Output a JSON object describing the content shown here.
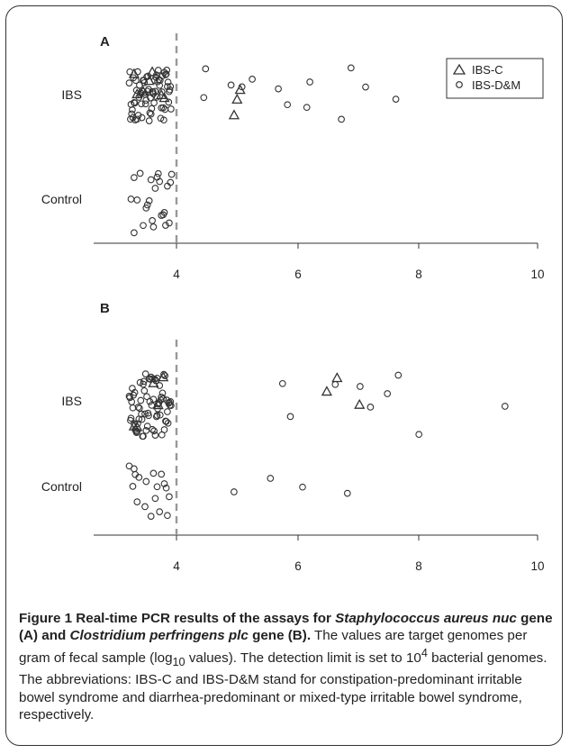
{
  "chart_data": [
    {
      "type": "scatter",
      "panel_label": "A",
      "categories": [
        "IBS",
        "Control"
      ],
      "x_ticks": [
        4,
        6,
        8,
        10
      ],
      "xlim": [
        3,
        10
      ],
      "threshold_x": 4,
      "threshold_style": "dashed",
      "legend": {
        "position": "top-right"
      },
      "series": [
        {
          "name": "IBS-C",
          "marker": "triangle",
          "category": "IBS",
          "x": [
            3.35,
            3.8,
            3.3,
            3.55,
            3.45,
            3.75,
            3.6,
            4.95,
            5.0,
            5.05
          ]
        },
        {
          "name": "IBS-D&M",
          "marker": "circle",
          "category": "IBS",
          "x": [
            3.22,
            3.27,
            3.31,
            3.36,
            3.4,
            3.45,
            3.49,
            3.53,
            3.57,
            3.62,
            3.66,
            3.7,
            3.74,
            3.79,
            3.83,
            3.88,
            3.24,
            3.29,
            3.34,
            3.38,
            3.42,
            3.47,
            3.51,
            3.55,
            3.6,
            3.64,
            3.68,
            3.72,
            3.77,
            3.81,
            3.85,
            3.9,
            3.23,
            3.28,
            3.33,
            3.37,
            3.41,
            3.46,
            3.5,
            3.54,
            3.59,
            3.63,
            3.67,
            3.71,
            3.76,
            3.8,
            3.84,
            3.89,
            3.25,
            3.3,
            3.35,
            3.39,
            3.44,
            3.48,
            3.52,
            3.56,
            3.61,
            3.65,
            3.69,
            3.73,
            3.78,
            3.82,
            3.86,
            3.91,
            3.26,
            3.32,
            3.43,
            3.58,
            3.75,
            3.87,
            4.45,
            4.48,
            4.9,
            5.08,
            5.25,
            5.68,
            5.83,
            6.15,
            6.2,
            6.72,
            6.88,
            7.12,
            7.62
          ]
        },
        {
          "name": "Control",
          "marker": "circle",
          "category": "Control",
          "x": [
            3.25,
            3.3,
            3.3,
            3.35,
            3.45,
            3.5,
            3.55,
            3.58,
            3.6,
            3.62,
            3.65,
            3.7,
            3.72,
            3.75,
            3.78,
            3.8,
            3.82,
            3.85,
            3.88,
            3.9,
            3.92,
            3.68,
            3.4,
            3.52
          ]
        }
      ]
    },
    {
      "type": "scatter",
      "panel_label": "B",
      "categories": [
        "IBS",
        "Control"
      ],
      "x_ticks": [
        4,
        6,
        8,
        10
      ],
      "xlim": [
        3,
        10
      ],
      "threshold_x": 4,
      "threshold_style": "dashed",
      "series": [
        {
          "name": "IBS-C",
          "marker": "triangle",
          "category": "IBS",
          "x": [
            3.3,
            3.35,
            3.62,
            3.7,
            3.78,
            6.48,
            7.02,
            6.65
          ]
        },
        {
          "name": "IBS-D&M",
          "marker": "circle",
          "category": "IBS",
          "x": [
            3.22,
            3.27,
            3.31,
            3.36,
            3.4,
            3.45,
            3.49,
            3.53,
            3.57,
            3.62,
            3.66,
            3.7,
            3.74,
            3.79,
            3.83,
            3.88,
            3.24,
            3.29,
            3.34,
            3.38,
            3.42,
            3.47,
            3.51,
            3.55,
            3.6,
            3.64,
            3.68,
            3.72,
            3.77,
            3.81,
            3.85,
            3.9,
            3.23,
            3.28,
            3.33,
            3.37,
            3.41,
            3.46,
            3.5,
            3.54,
            3.59,
            3.63,
            3.67,
            3.71,
            3.76,
            3.8,
            3.84,
            3.89,
            3.25,
            3.3,
            3.35,
            3.39,
            3.44,
            3.48,
            3.52,
            3.56,
            3.61,
            3.65,
            3.69,
            3.73,
            3.78,
            3.82,
            3.86,
            3.91,
            3.26,
            3.32,
            3.43,
            3.58,
            3.75,
            3.87,
            3.45,
            3.68,
            5.75,
            5.88,
            6.62,
            7.03,
            7.2,
            7.48,
            7.66,
            8.0,
            9.42
          ]
        },
        {
          "name": "Control",
          "marker": "circle",
          "category": "Control",
          "x": [
            3.22,
            3.28,
            3.32,
            3.35,
            3.38,
            3.48,
            3.5,
            3.58,
            3.65,
            3.68,
            3.72,
            3.75,
            3.8,
            3.83,
            3.85,
            3.88,
            3.3,
            3.62,
            4.95,
            5.55,
            6.08,
            6.82
          ]
        }
      ]
    }
  ],
  "caption": {
    "figure_label": "Figure 1",
    "bold_text_1": " Real-time PCR results of the assays for ",
    "italic_1": "Staphylococcus aureus nuc",
    "bold_text_2": " gene (A) and ",
    "italic_2": "Clostridium perfringens plc",
    "bold_text_3": " gene (B).",
    "body_1": " The values are target genomes per gram of fecal sample (log",
    "body_sub": "10",
    "body_2": " values). The detection limit is set to 10",
    "body_sup": "4",
    "body_3": " bacterial genomes. The abbreviations: IBS-C and IBS-D&M stand for constipation-predominant irritable bowel syndrome and diarrhea-predominant or mixed-type irritable bowel syndrome, respectively."
  },
  "colors": {
    "points": "#333333",
    "axis": "#333333",
    "threshold": "#999999",
    "text": "#222222"
  }
}
